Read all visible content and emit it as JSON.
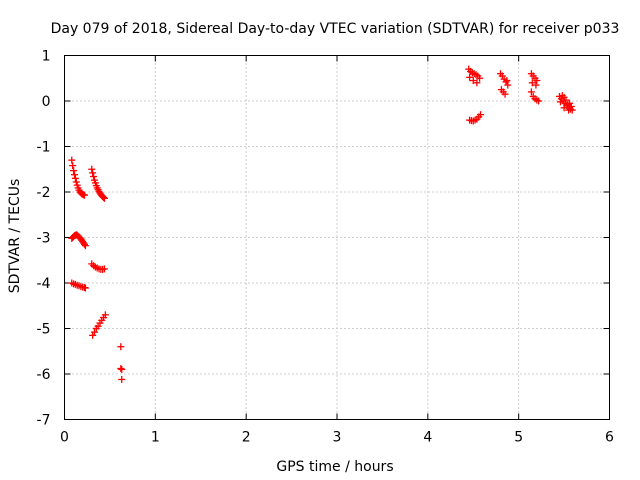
{
  "chart_data": {
    "type": "scatter",
    "title": "Day 079 of 2018, Sidereal Day-to-day VTEC variation (SDTVAR) for receiver p033",
    "xlabel": "GPS time / hours",
    "ylabel": "SDTVAR / TECUs",
    "xlim": [
      0,
      6
    ],
    "ylim": [
      -7,
      1
    ],
    "xticks": [
      "0",
      "1",
      "2",
      "3",
      "4",
      "5",
      "6"
    ],
    "yticks": [
      "1",
      "0",
      "-1",
      "-2",
      "-3",
      "-4",
      "-5",
      "-6",
      "-7"
    ],
    "grid": true,
    "marker": "+",
    "color": "#ff0000",
    "series": [
      {
        "name": "SDTVAR",
        "x": [
          0.08,
          0.09,
          0.1,
          0.11,
          0.12,
          0.13,
          0.14,
          0.15,
          0.16,
          0.17,
          0.18,
          0.19,
          0.2,
          0.21,
          0.22,
          0.3,
          0.31,
          0.32,
          0.33,
          0.34,
          0.35,
          0.36,
          0.37,
          0.38,
          0.39,
          0.4,
          0.41,
          0.42,
          0.43,
          0.44,
          0.08,
          0.09,
          0.1,
          0.11,
          0.12,
          0.13,
          0.14,
          0.15,
          0.16,
          0.17,
          0.18,
          0.19,
          0.2,
          0.21,
          0.22,
          0.23,
          0.3,
          0.32,
          0.34,
          0.36,
          0.38,
          0.4,
          0.42,
          0.44,
          0.08,
          0.1,
          0.12,
          0.14,
          0.16,
          0.18,
          0.2,
          0.22,
          0.23,
          0.31,
          0.33,
          0.35,
          0.37,
          0.39,
          0.41,
          0.43,
          0.45,
          0.62,
          0.62,
          0.63,
          0.63,
          4.45,
          4.47,
          4.49,
          4.51,
          4.53,
          4.55,
          4.57,
          4.46,
          4.5,
          4.54,
          4.46,
          4.48,
          4.5,
          4.52,
          4.54,
          4.56,
          4.58,
          4.8,
          4.82,
          4.84,
          4.86,
          4.88,
          4.81,
          4.85,
          4.83,
          4.87,
          5.14,
          5.16,
          5.18,
          5.2,
          5.15,
          5.19,
          5.14,
          5.16,
          5.18,
          5.2,
          5.22,
          5.45,
          5.47,
          5.49,
          5.51,
          5.53,
          5.55,
          5.57,
          5.59,
          5.46,
          5.5,
          5.54,
          5.58,
          5.48,
          5.52,
          5.56,
          5.5,
          5.55
        ],
        "y": [
          -1.3,
          -1.42,
          -1.53,
          -1.62,
          -1.7,
          -1.78,
          -1.85,
          -1.91,
          -1.96,
          -2.0,
          -2.02,
          -2.04,
          -2.05,
          -2.06,
          -2.07,
          -1.5,
          -1.58,
          -1.66,
          -1.74,
          -1.8,
          -1.86,
          -1.91,
          -1.95,
          -1.99,
          -2.02,
          -2.05,
          -2.08,
          -2.1,
          -2.12,
          -2.14,
          -3.02,
          -3.0,
          -2.98,
          -2.96,
          -2.95,
          -2.94,
          -2.95,
          -2.97,
          -2.99,
          -3.01,
          -3.03,
          -3.06,
          -3.09,
          -3.12,
          -3.15,
          -3.18,
          -3.58,
          -3.62,
          -3.65,
          -3.67,
          -3.69,
          -3.7,
          -3.7,
          -3.69,
          -4.0,
          -4.02,
          -4.03,
          -4.05,
          -4.06,
          -4.08,
          -4.09,
          -4.1,
          -4.11,
          -5.15,
          -5.08,
          -5.0,
          -4.95,
          -4.88,
          -4.82,
          -4.76,
          -4.7,
          -5.4,
          -5.88,
          -5.9,
          -6.12,
          0.7,
          0.65,
          0.62,
          0.6,
          0.58,
          0.55,
          0.5,
          0.52,
          0.45,
          0.4,
          -0.42,
          -0.43,
          -0.44,
          -0.42,
          -0.4,
          -0.35,
          -0.3,
          0.6,
          0.55,
          0.48,
          0.42,
          0.35,
          0.25,
          0.15,
          0.2,
          0.45,
          0.6,
          0.55,
          0.5,
          0.45,
          0.4,
          0.35,
          0.2,
          0.1,
          0.05,
          0.02,
          0.0,
          0.1,
          0.05,
          0.0,
          -0.05,
          -0.1,
          -0.15,
          -0.18,
          -0.2,
          -0.02,
          0.08,
          -0.08,
          -0.12,
          0.12,
          0.02,
          -0.05,
          -0.15,
          -0.2
        ]
      }
    ]
  }
}
